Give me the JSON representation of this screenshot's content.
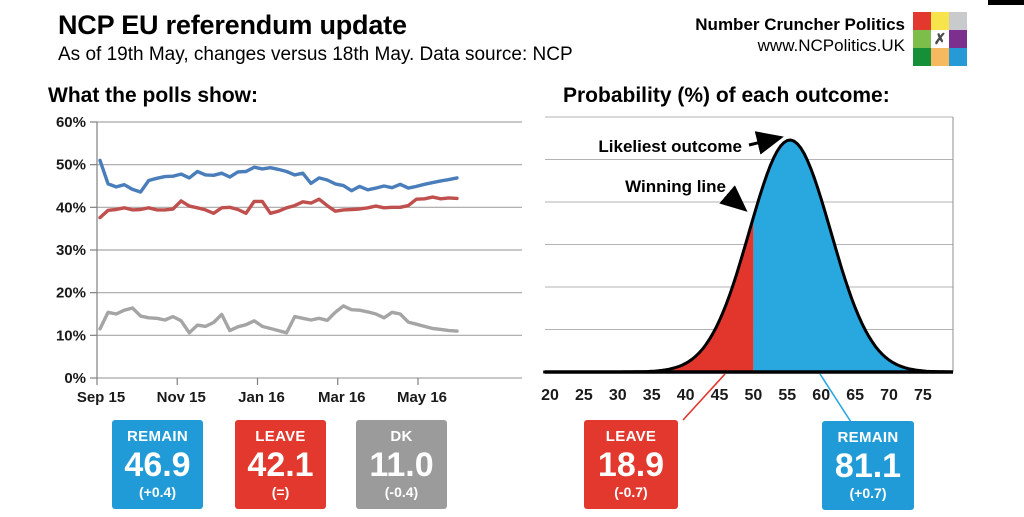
{
  "header": {
    "title": "NCP EU referendum update",
    "subtitle": "As of 19th May, changes versus 18th May. Data source: NCP"
  },
  "brand": {
    "name": "Number Cruncher Politics",
    "url": "www.NCPolitics.UK",
    "logo_grid": [
      [
        "#e2382d",
        "#f7e34c",
        "#c9cacb"
      ],
      [
        "#7dbe4a",
        "#ffffff",
        "#7c2f8f"
      ],
      [
        "#169038",
        "#f6b95f",
        "#259ad6"
      ]
    ],
    "logo_center_glyph": "✗"
  },
  "left_panel": {
    "heading": "What the polls show:",
    "cards": [
      {
        "label": "REMAIN",
        "value": "46.9",
        "change": "(+0.4)",
        "color": "#219bd8"
      },
      {
        "label": "LEAVE",
        "value": "42.1",
        "change": "(=)",
        "color": "#e2382d"
      },
      {
        "label": "DK",
        "value": "11.0",
        "change": "(-0.4)",
        "color": "#9b9b9b"
      }
    ]
  },
  "right_panel": {
    "heading": "Probability (%) of each outcome:",
    "annotations": {
      "likeliest_outcome": "Likeliest outcome",
      "winning_line": "Winning line"
    },
    "cards": [
      {
        "label": "LEAVE",
        "value": "18.9",
        "change": "(-0.7)",
        "color": "#e2382d"
      },
      {
        "label": "REMAIN",
        "value": "81.1",
        "change": "(+0.7)",
        "color": "#219bd8"
      }
    ]
  },
  "chart_data": [
    {
      "type": "line",
      "title": "What the polls show:",
      "x_tick_labels": [
        "Sep 15",
        "Nov 15",
        "Jan 16",
        "Mar 16",
        "May 16"
      ],
      "y_tick_labels": [
        "60%",
        "50%",
        "40%",
        "30%",
        "20%",
        "10%",
        "0%"
      ],
      "ylim": [
        0,
        60
      ],
      "grid": true,
      "legend_position": "none",
      "series": [
        {
          "name": "REMAIN",
          "color": "#4a7ebb",
          "latest": 46.9,
          "change": "+0.4",
          "values": [
            51.0,
            45.5,
            44.8,
            45.3,
            44.2,
            43.6,
            46.3,
            46.8,
            47.2,
            47.3,
            47.8,
            46.9,
            48.4,
            47.6,
            47.5,
            48.0,
            47.1,
            48.3,
            48.4,
            49.4,
            49.0,
            49.3,
            48.9,
            48.4,
            47.6,
            48.0,
            45.6,
            46.9,
            46.4,
            45.5,
            45.1,
            43.9,
            44.9,
            44.1,
            44.5,
            45.0,
            44.6,
            45.4,
            44.5,
            44.9,
            45.4,
            45.8,
            46.2,
            46.5,
            46.9
          ]
        },
        {
          "name": "LEAVE",
          "color": "#c0504d",
          "latest": 42.1,
          "change": "=",
          "values": [
            37.6,
            39.3,
            39.5,
            39.9,
            39.4,
            39.5,
            39.9,
            39.4,
            39.4,
            39.6,
            41.5,
            40.3,
            39.9,
            39.4,
            38.6,
            39.9,
            40.0,
            39.5,
            38.6,
            41.4,
            41.4,
            38.6,
            39.1,
            39.9,
            40.4,
            41.3,
            41.0,
            41.9,
            40.4,
            39.1,
            39.4,
            39.5,
            39.6,
            39.9,
            40.3,
            39.9,
            40.0,
            40.0,
            40.4,
            41.9,
            42.0,
            42.4,
            42.0,
            42.2,
            42.1
          ]
        },
        {
          "name": "DK",
          "color": "#a5a5a5",
          "latest": 11.0,
          "change": "-0.4",
          "values": [
            11.5,
            15.4,
            15.0,
            15.9,
            16.4,
            14.5,
            14.1,
            14.0,
            13.6,
            14.4,
            13.4,
            10.6,
            12.4,
            12.1,
            13.0,
            14.9,
            11.1,
            12.0,
            12.5,
            13.4,
            12.1,
            11.6,
            11.1,
            10.6,
            14.4,
            14.0,
            13.6,
            14.0,
            13.5,
            15.4,
            16.9,
            16.0,
            15.9,
            15.5,
            15.0,
            14.1,
            15.4,
            15.0,
            13.1,
            12.6,
            12.1,
            11.6,
            11.4,
            11.1,
            11.0
          ]
        }
      ]
    },
    {
      "type": "area",
      "subtype": "probability-distribution",
      "title": "Probability (%) of each outcome:",
      "x_ticks": [
        20,
        25,
        30,
        35,
        40,
        45,
        50,
        55,
        60,
        65,
        70,
        75
      ],
      "xlim": [
        19,
        79.4
      ],
      "grid": true,
      "distribution": {
        "mean": 55.4,
        "sd": 6.0
      },
      "winning_line": 50,
      "regions": [
        {
          "name": "LEAVE",
          "range": "below 50",
          "probability": 18.9,
          "change": -0.7,
          "color": "#e2352b"
        },
        {
          "name": "REMAIN",
          "range": "above 50",
          "probability": 81.1,
          "change": 0.7,
          "color": "#29a8e0"
        }
      ],
      "annotations": [
        "Likeliest outcome",
        "Winning line"
      ]
    }
  ]
}
